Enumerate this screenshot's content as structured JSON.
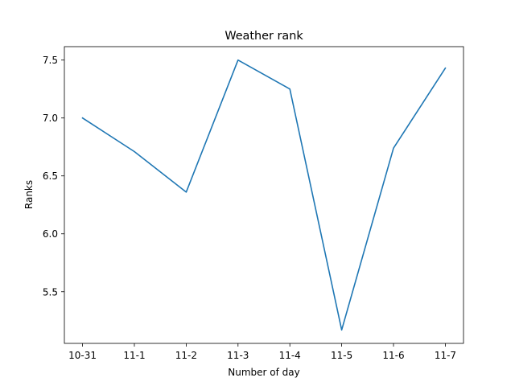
{
  "chart_data": {
    "type": "line",
    "title": "Weather rank",
    "xlabel": "Number of day",
    "ylabel": "Ranks",
    "categories": [
      "10-31",
      "11-1",
      "11-2",
      "11-3",
      "11-4",
      "11-5",
      "11-6",
      "11-7"
    ],
    "series": [
      {
        "values": [
          7.0,
          6.71,
          6.36,
          7.5,
          7.25,
          5.17,
          6.74,
          7.43
        ],
        "color": "#1f77b4"
      }
    ],
    "yticks": [
      5.5,
      6.0,
      6.5,
      7.0,
      7.5
    ],
    "ytick_labels": [
      "5.5",
      "6.0",
      "6.5",
      "7.0",
      "7.5"
    ],
    "ylim": [
      5.054,
      7.616
    ],
    "grid": false,
    "legend": "none"
  }
}
